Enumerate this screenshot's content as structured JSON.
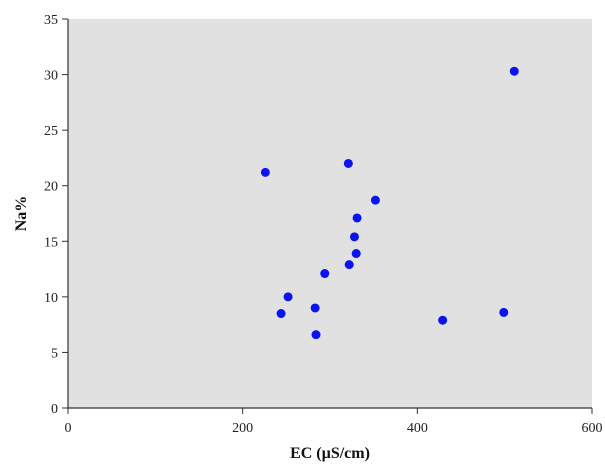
{
  "chart_data": {
    "type": "scatter",
    "xlabel": "EC (µS/cm)",
    "ylabel": "Na%",
    "xlim": [
      0,
      600
    ],
    "ylim": [
      0,
      35
    ],
    "xticks": [
      0,
      200,
      400,
      600
    ],
    "yticks": [
      0,
      5,
      10,
      15,
      20,
      25,
      30,
      35
    ],
    "grid": false,
    "colors": {
      "points": "#0a14f0",
      "plot_background": "#e1e1e1",
      "axis": "#333333"
    },
    "points": [
      {
        "x": 226,
        "y": 21.2
      },
      {
        "x": 244,
        "y": 8.5
      },
      {
        "x": 252,
        "y": 10.0
      },
      {
        "x": 283,
        "y": 9.0
      },
      {
        "x": 284,
        "y": 6.6
      },
      {
        "x": 294,
        "y": 12.1
      },
      {
        "x": 321,
        "y": 22.0
      },
      {
        "x": 322,
        "y": 12.9
      },
      {
        "x": 328,
        "y": 15.4
      },
      {
        "x": 330,
        "y": 13.9
      },
      {
        "x": 331,
        "y": 17.1
      },
      {
        "x": 352,
        "y": 18.7
      },
      {
        "x": 429,
        "y": 7.9
      },
      {
        "x": 499,
        "y": 8.6
      },
      {
        "x": 511,
        "y": 30.3
      }
    ]
  }
}
